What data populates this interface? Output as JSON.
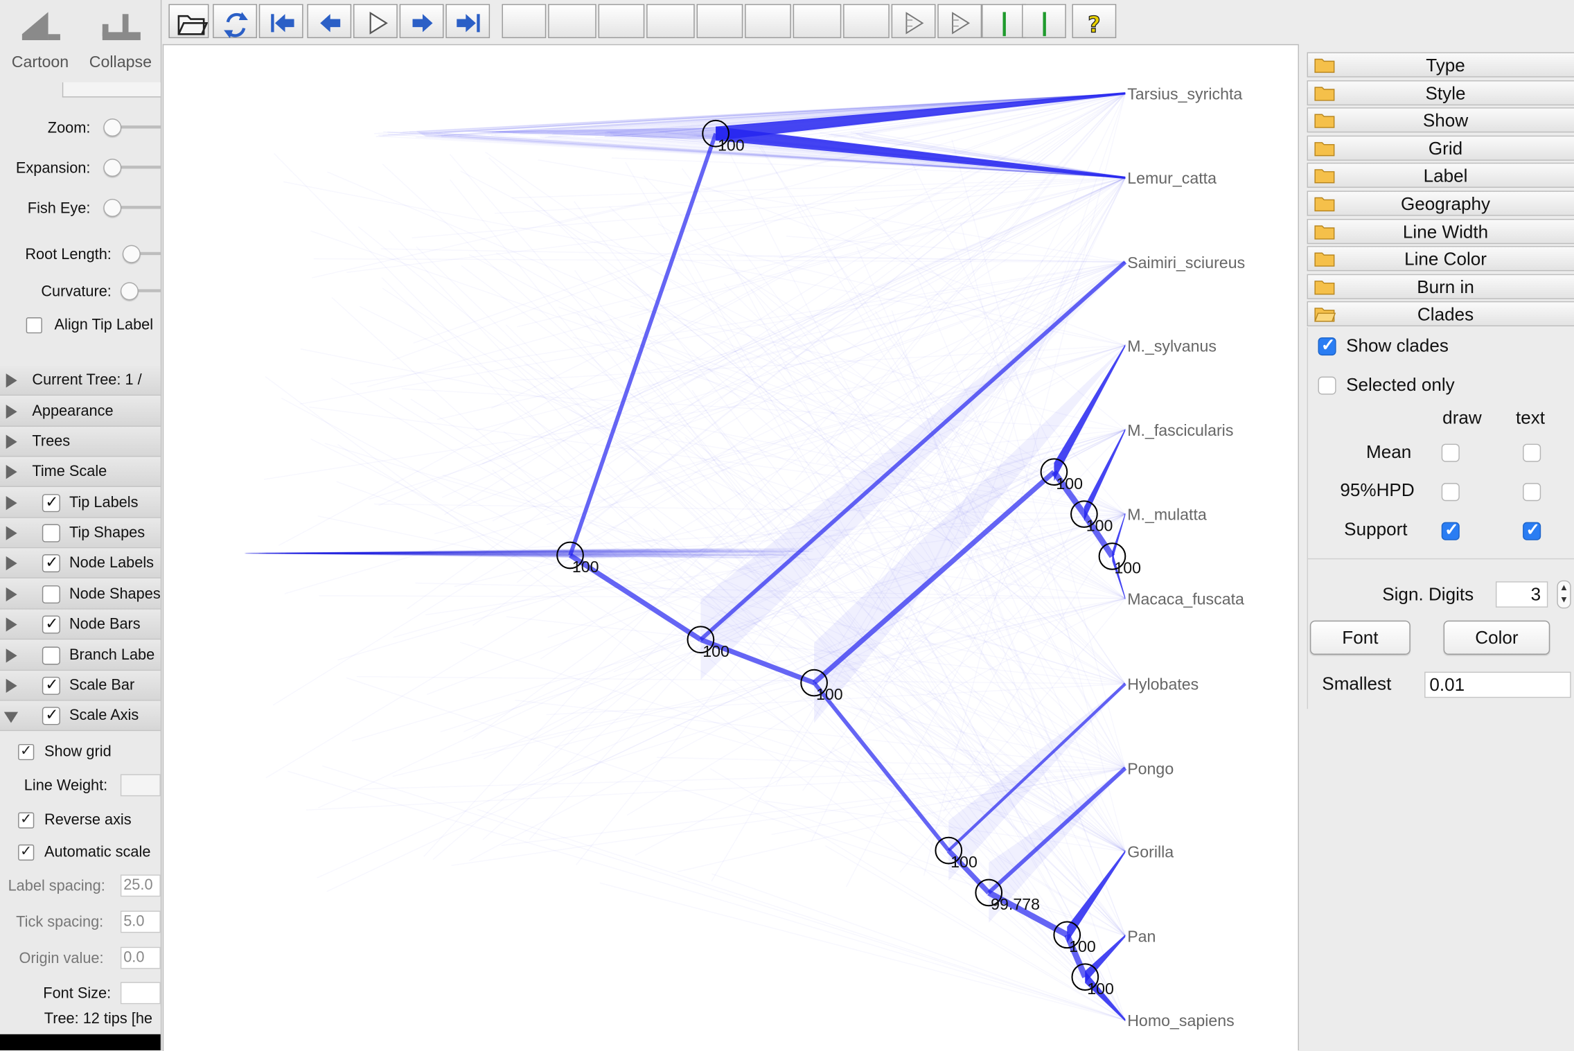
{
  "window": {
    "top_tools": [
      {
        "label": "Cartoon",
        "icon": "cartoon-icon"
      },
      {
        "label": "Collapse",
        "icon": "collapse-icon"
      }
    ],
    "toolbar_buttons": [
      {
        "name": "open-button",
        "icon": "folder-open-icon"
      },
      {
        "name": "refresh-button",
        "icon": "refresh-icon"
      },
      {
        "name": "first-tree-button",
        "icon": "skip-first-icon"
      },
      {
        "name": "previous-tree-button",
        "icon": "arrow-left-icon"
      },
      {
        "name": "play-button",
        "icon": "play-icon"
      },
      {
        "name": "next-tree-button",
        "icon": "arrow-right-icon"
      },
      {
        "name": "last-tree-button",
        "icon": "skip-last-icon"
      },
      {
        "name": "tree-style-1-button",
        "icon": "tree-icon"
      },
      {
        "name": "tree-style-2-button",
        "icon": "tree-icon"
      },
      {
        "name": "tree-style-3-button",
        "icon": "tree-icon"
      },
      {
        "name": "tree-style-4-button",
        "icon": "tree-icon"
      },
      {
        "name": "tree-style-5-button",
        "icon": "tree-icon"
      },
      {
        "name": "tree-style-6-button",
        "icon": "tree-icon"
      },
      {
        "name": "tree-style-7-button",
        "icon": "tree-icon"
      },
      {
        "name": "tree-style-8-button",
        "icon": "tree-icon"
      },
      {
        "name": "forward-1-button",
        "icon": "forward-icon"
      },
      {
        "name": "forward-2-button",
        "icon": "forward-icon"
      },
      {
        "name": "bars-1-button",
        "icon": "bars-icon"
      },
      {
        "name": "bars-2-button",
        "icon": "bars-icon"
      },
      {
        "name": "help-button",
        "icon": "help-icon"
      }
    ]
  },
  "left_panel": {
    "sliders": [
      {
        "label": "Zoom:"
      },
      {
        "label": "Expansion:"
      },
      {
        "label": "Fish Eye:"
      },
      {
        "label": "Root Length:"
      },
      {
        "label": "Curvature:"
      }
    ],
    "align_tip_label": {
      "label": "Align Tip Label",
      "checked": false
    },
    "sections": [
      {
        "label": "Current Tree: 1 /",
        "has_checkbox": false
      },
      {
        "label": "Appearance",
        "has_checkbox": false
      },
      {
        "label": "Trees",
        "has_checkbox": false
      },
      {
        "label": "Time Scale",
        "has_checkbox": false
      },
      {
        "label": "Tip Labels",
        "has_checkbox": true,
        "checked": true
      },
      {
        "label": "Tip Shapes",
        "has_checkbox": true,
        "checked": false
      },
      {
        "label": "Node Labels",
        "has_checkbox": true,
        "checked": true
      },
      {
        "label": "Node Shapes",
        "has_checkbox": true,
        "checked": false
      },
      {
        "label": "Node Bars",
        "has_checkbox": true,
        "checked": true
      },
      {
        "label": "Branch Labe",
        "has_checkbox": true,
        "checked": false
      },
      {
        "label": "Scale Bar",
        "has_checkbox": true,
        "checked": true
      },
      {
        "label": "Scale Axis",
        "has_checkbox": true,
        "checked": true
      }
    ],
    "scale_axis": {
      "show_grid": {
        "label": "Show grid",
        "checked": true
      },
      "line_weight": {
        "label": "Line Weight:"
      },
      "reverse_axis": {
        "label": "Reverse axis",
        "checked": true
      },
      "automatic_scale": {
        "label": "Automatic scale",
        "checked": true
      },
      "label_spacing": {
        "label": "Label spacing:",
        "value": "25.0"
      },
      "tick_spacing": {
        "label": "Tick spacing:",
        "value": "5.0"
      },
      "origin_value": {
        "label": "Origin value:",
        "value": "0.0"
      },
      "font_size": {
        "label": "Font Size:"
      }
    },
    "status": "Tree: 12 tips [he"
  },
  "tree": {
    "color": "#2424f0",
    "tips": [
      "Tarsius_syrichta",
      "Lemur_catta",
      "Saimiri_sciureus",
      "M._sylvanus",
      "M._fascicularis",
      "M._mulatta",
      "Macaca_fuscata",
      "Hylobates",
      "Pongo",
      "Gorilla",
      "Pan",
      "Homo_sapiens"
    ],
    "node_labels": [
      "100",
      "100",
      "100",
      "100",
      "100",
      "100",
      "100",
      "100",
      "99.778",
      "100",
      "100"
    ]
  },
  "right_panel": {
    "sections": [
      "Type",
      "Style",
      "Show",
      "Grid",
      "Label",
      "Geography",
      "Line Width",
      "Line Color",
      "Burn in",
      "Clades"
    ],
    "clades": {
      "show_clades": {
        "label": "Show clades",
        "checked": true
      },
      "selected_only": {
        "label": "Selected only",
        "checked": false
      },
      "col_draw": "draw",
      "col_text": "text",
      "rows": [
        {
          "label": "Mean",
          "draw": false,
          "text": false
        },
        {
          "label": "95%HPD",
          "draw": false,
          "text": false
        },
        {
          "label": "Support",
          "draw": true,
          "text": true
        }
      ],
      "sign_digits_label": "Sign. Digits",
      "sign_digits_value": "3",
      "font_button": "Font",
      "color_button": "Color",
      "smallest_label": "Smallest",
      "smallest_value": "0.01"
    }
  }
}
